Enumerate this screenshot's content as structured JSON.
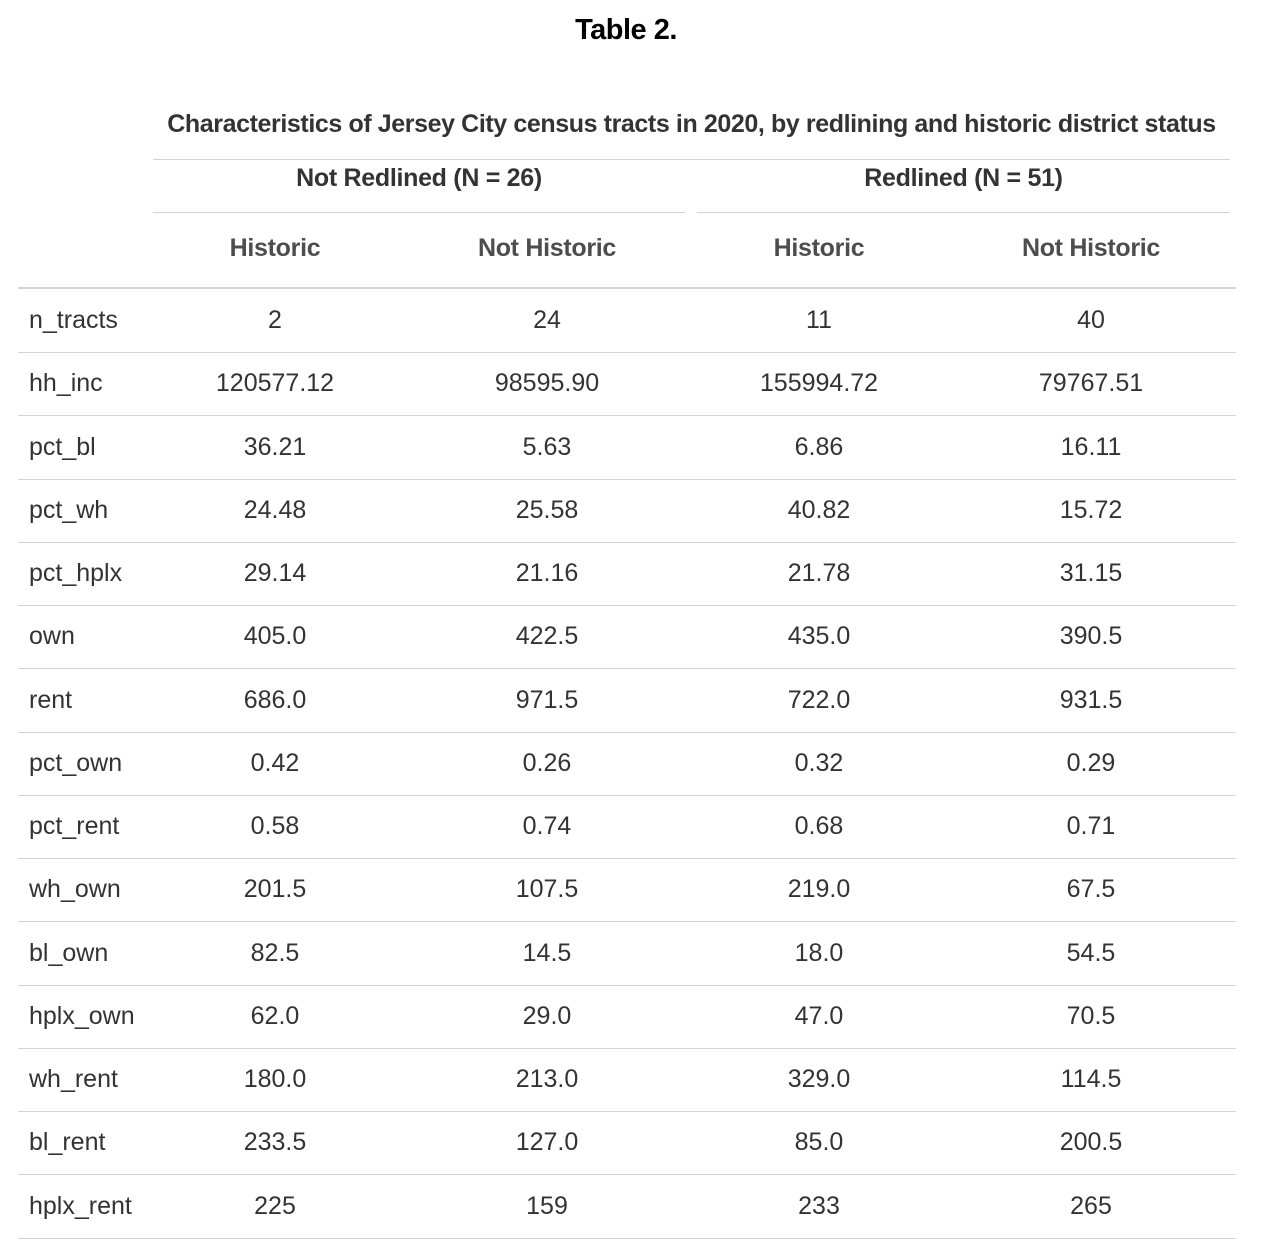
{
  "table_title": "Table 2.",
  "caption": "Characteristics of Jersey City census tracts in 2020, by redlining and historic district status",
  "spanners": [
    "Not Redlined (N = 26)",
    "Redlined (N = 51)"
  ],
  "columns": [
    "Historic",
    "Not Historic",
    "Historic",
    "Not Historic"
  ],
  "rows": [
    {
      "label": "n_tracts",
      "values": [
        "2",
        "24",
        "11",
        "40"
      ]
    },
    {
      "label": "hh_inc",
      "values": [
        "120577.12",
        "98595.90",
        "155994.72",
        "79767.51"
      ]
    },
    {
      "label": "pct_bl",
      "values": [
        "36.21",
        "5.63",
        "6.86",
        "16.11"
      ]
    },
    {
      "label": "pct_wh",
      "values": [
        "24.48",
        "25.58",
        "40.82",
        "15.72"
      ]
    },
    {
      "label": "pct_hplx",
      "values": [
        "29.14",
        "21.16",
        "21.78",
        "31.15"
      ]
    },
    {
      "label": "own",
      "values": [
        "405.0",
        "422.5",
        "435.0",
        "390.5"
      ]
    },
    {
      "label": "rent",
      "values": [
        "686.0",
        "971.5",
        "722.0",
        "931.5"
      ]
    },
    {
      "label": "pct_own",
      "values": [
        "0.42",
        "0.26",
        "0.32",
        "0.29"
      ]
    },
    {
      "label": "pct_rent",
      "values": [
        "0.58",
        "0.74",
        "0.68",
        "0.71"
      ]
    },
    {
      "label": "wh_own",
      "values": [
        "201.5",
        "107.5",
        "219.0",
        "67.5"
      ]
    },
    {
      "label": "bl_own",
      "values": [
        "82.5",
        "14.5",
        "18.0",
        "54.5"
      ]
    },
    {
      "label": "hplx_own",
      "values": [
        "62.0",
        "29.0",
        "47.0",
        "70.5"
      ]
    },
    {
      "label": "wh_rent",
      "values": [
        "180.0",
        "213.0",
        "329.0",
        "114.5"
      ]
    },
    {
      "label": "bl_rent",
      "values": [
        "233.5",
        "127.0",
        "85.0",
        "200.5"
      ]
    },
    {
      "label": "hplx_rent",
      "values": [
        "225",
        "159",
        "233",
        "265"
      ]
    }
  ]
}
